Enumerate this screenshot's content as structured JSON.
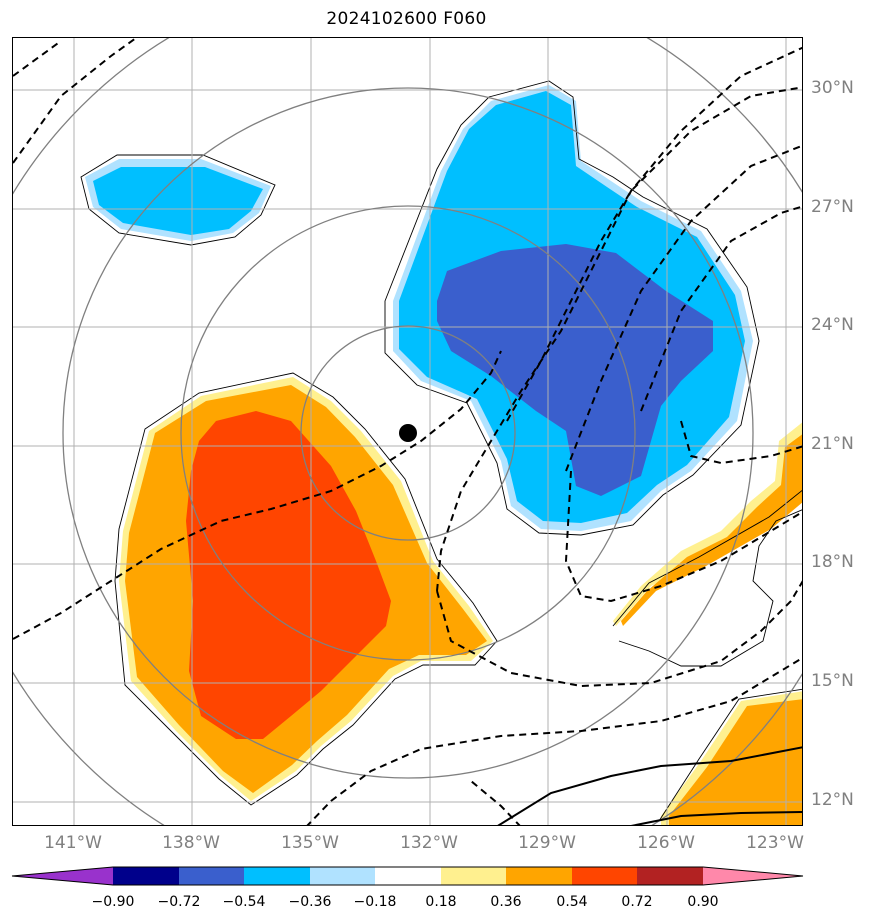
{
  "title": "2024102600 F060",
  "lat_labels": [
    {
      "text": "30°N",
      "lat": 30
    },
    {
      "text": "27°N",
      "lat": 27
    },
    {
      "text": "24°N",
      "lat": 24
    },
    {
      "text": "21°N",
      "lat": 21
    },
    {
      "text": "18°N",
      "lat": 18
    },
    {
      "text": "15°N",
      "lat": 15
    },
    {
      "text": "12°N",
      "lat": 12
    }
  ],
  "lon_labels": [
    {
      "text": "141°W",
      "lon": -141
    },
    {
      "text": "138°W",
      "lon": -138
    },
    {
      "text": "135°W",
      "lon": -135
    },
    {
      "text": "132°W",
      "lon": -132
    },
    {
      "text": "129°W",
      "lon": -129
    },
    {
      "text": "126°W",
      "lon": -126
    },
    {
      "text": "123°W",
      "lon": -123
    }
  ],
  "storm_center": {
    "lon": -132.4,
    "lat": 21.3
  },
  "range_rings": {
    "count": 4,
    "color": "#808080"
  },
  "colorbar": {
    "extend": "both",
    "colors": [
      "#9932cc",
      "#00008b",
      "#3a5fcd",
      "#00bfff",
      "#b0e2ff",
      "#ffffff",
      "#fff08f",
      "#ffa500",
      "#ff4500",
      "#b22222",
      "#ff88aa"
    ],
    "ticks": [
      "−0.90",
      "−0.72",
      "−0.54",
      "−0.36",
      "−0.18",
      "0.18",
      "0.36",
      "0.54",
      "0.72",
      "0.90"
    ]
  },
  "grid_color": "#b0b0b0",
  "contour_color": "#000000"
}
